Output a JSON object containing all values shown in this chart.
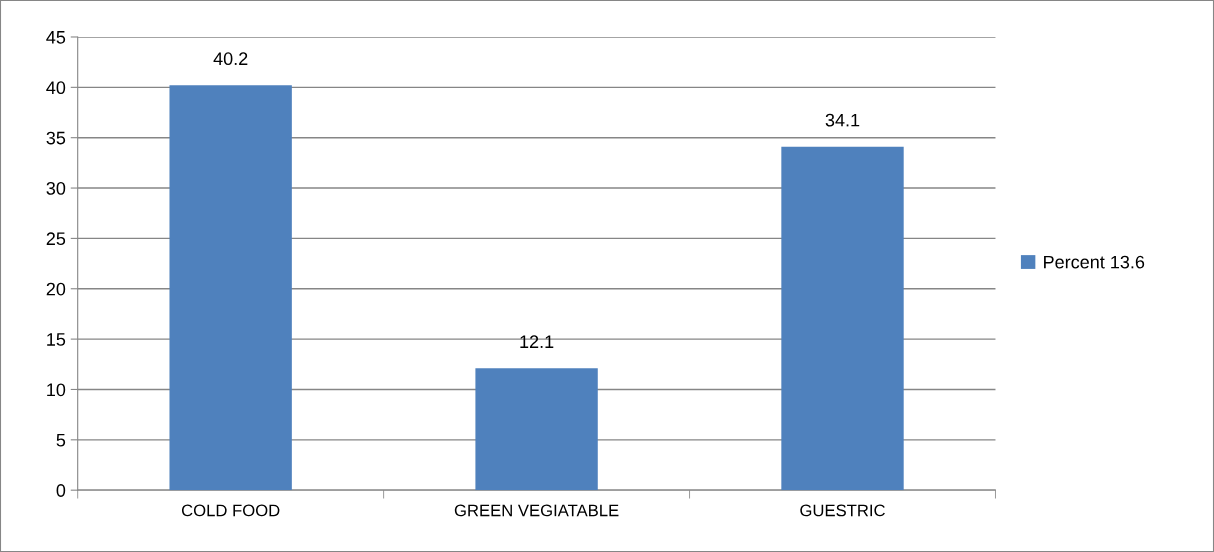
{
  "chart_data": {
    "type": "bar",
    "categories": [
      "COLD FOOD",
      "GREEN VEGIATABLE",
      "GUESTRIC"
    ],
    "series": [
      {
        "name": "Percent 13.6",
        "color": "#4f81bd",
        "values": [
          40.2,
          12.1,
          34.1
        ]
      }
    ],
    "ylim": [
      0,
      45
    ],
    "yticks": [
      0,
      5,
      10,
      15,
      20,
      25,
      30,
      35,
      40,
      45
    ],
    "grid": "y",
    "legend": "right",
    "data_labels": true
  }
}
